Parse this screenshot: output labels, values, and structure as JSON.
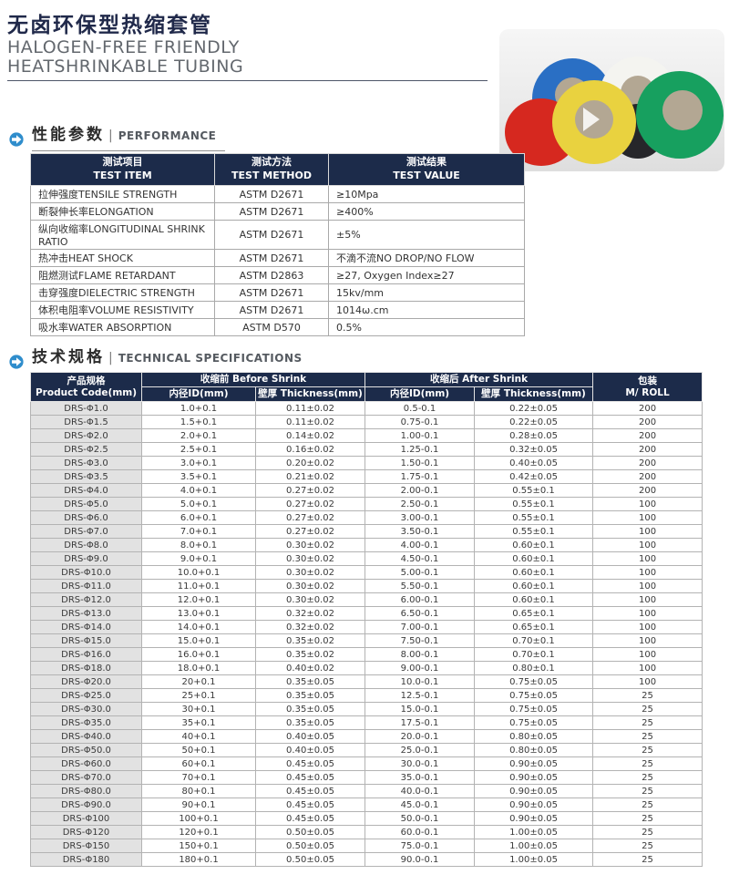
{
  "page": {
    "title_zh": "无卤环保型热缩套管",
    "subtitle_line1": "HALOGEN-FREE FRIENDLY",
    "subtitle_line2": "HEATSHRINKABLE TUBING"
  },
  "colors": {
    "header_navy": "#1c2b4a",
    "title_navy": "#20294a",
    "section_icon_blue": "#2f8dcc"
  },
  "photo": {
    "description": "rolls of colored heat-shrinkable tubing",
    "core_color": "#b3a793",
    "roll_colors": {
      "blue": "#2a6fc4",
      "white": "#f4f4f0",
      "black": "#26262a",
      "red": "#d6281f",
      "yellow": "#e9d23f",
      "green": "#17a05f"
    }
  },
  "performance": {
    "section_title_zh": "性能参数",
    "section_title_en": "PERFORMANCE",
    "table": {
      "headers_zh": [
        "测试项目",
        "测试方法",
        "测试结果"
      ],
      "headers_en": [
        "TEST ITEM",
        "TEST METHOD",
        "TEST VALUE"
      ],
      "rows": [
        [
          "拉伸强度TENSILE STRENGTH",
          "ASTM D2671",
          "≥10Mpa"
        ],
        [
          "断裂伸长率ELONGATION",
          "ASTM D2671",
          "≥400%"
        ],
        [
          "纵向收缩率LONGITUDINAL SHRINK RATIO",
          "ASTM D2671",
          "±5%"
        ],
        [
          "热冲击HEAT SHOCK",
          "ASTM D2671",
          "不滴不流NO DROP/NO FLOW"
        ],
        [
          "阻燃测试FLAME RETARDANT",
          "ASTM D2863",
          "≥27, Oxygen Index≥27"
        ],
        [
          "击穿强度DIELECTRIC STRENGTH",
          "ASTM D2671",
          "15kv/mm"
        ],
        [
          "体积电阻率VOLUME RESISTIVITY",
          "ASTM D2671",
          "1014ω.cm"
        ],
        [
          "吸水率WATER ABSORPTION",
          "ASTM D570",
          "0.5%"
        ]
      ]
    }
  },
  "specs": {
    "section_title_zh": "技术规格",
    "section_title_en": "TECHNICAL SPECIFICATIONS",
    "table": {
      "col_product_zh": "产品规格",
      "col_product_en": "Product Code(mm)",
      "group_before": "收缩前 Before Shrink",
      "group_after": "收缩后 After Shrink",
      "col_id_before": "内径ID(mm)",
      "col_thickness_before": "壁厚 Thickness(mm)",
      "col_id_after": "内径ID(mm)",
      "col_thickness_after": "壁厚 Thickness(mm)",
      "col_roll_zh": "包装",
      "col_roll_en": "M/ ROLL",
      "rows": [
        [
          "DRS-Φ1.0",
          "1.0+0.1",
          "0.11±0.02",
          "0.5-0.1",
          "0.22±0.05",
          "200"
        ],
        [
          "DRS-Φ1.5",
          "1.5+0.1",
          "0.11±0.02",
          "0.75-0.1",
          "0.22±0.05",
          "200"
        ],
        [
          "DRS-Φ2.0",
          "2.0+0.1",
          "0.14±0.02",
          "1.00-0.1",
          "0.28±0.05",
          "200"
        ],
        [
          "DRS-Φ2.5",
          "2.5+0.1",
          "0.16±0.02",
          "1.25-0.1",
          "0.32±0.05",
          "200"
        ],
        [
          "DRS-Φ3.0",
          "3.0+0.1",
          "0.20±0.02",
          "1.50-0.1",
          "0.40±0.05",
          "200"
        ],
        [
          "DRS-Φ3.5",
          "3.5+0.1",
          "0.21±0.02",
          "1.75-0.1",
          "0.42±0.05",
          "200"
        ],
        [
          "DRS-Φ4.0",
          "4.0+0.1",
          "0.27±0.02",
          "2.00-0.1",
          "0.55±0.1",
          "200"
        ],
        [
          "DRS-Φ5.0",
          "5.0+0.1",
          "0.27±0.02",
          "2.50-0.1",
          "0.55±0.1",
          "100"
        ],
        [
          "DRS-Φ6.0",
          "6.0+0.1",
          "0.27±0.02",
          "3.00-0.1",
          "0.55±0.1",
          "100"
        ],
        [
          "DRS-Φ7.0",
          "7.0+0.1",
          "0.27±0.02",
          "3.50-0.1",
          "0.55±0.1",
          "100"
        ],
        [
          "DRS-Φ8.0",
          "8.0+0.1",
          "0.30±0.02",
          "4.00-0.1",
          "0.60±0.1",
          "100"
        ],
        [
          "DRS-Φ9.0",
          "9.0+0.1",
          "0.30±0.02",
          "4.50-0.1",
          "0.60±0.1",
          "100"
        ],
        [
          "DRS-Φ10.0",
          "10.0+0.1",
          "0.30±0.02",
          "5.00-0.1",
          "0.60±0.1",
          "100"
        ],
        [
          "DRS-Φ11.0",
          "11.0+0.1",
          "0.30±0.02",
          "5.50-0.1",
          "0.60±0.1",
          "100"
        ],
        [
          "DRS-Φ12.0",
          "12.0+0.1",
          "0.30±0.02",
          "6.00-0.1",
          "0.60±0.1",
          "100"
        ],
        [
          "DRS-Φ13.0",
          "13.0+0.1",
          "0.32±0.02",
          "6.50-0.1",
          "0.65±0.1",
          "100"
        ],
        [
          "DRS-Φ14.0",
          "14.0+0.1",
          "0.32±0.02",
          "7.00-0.1",
          "0.65±0.1",
          "100"
        ],
        [
          "DRS-Φ15.0",
          "15.0+0.1",
          "0.35±0.02",
          "7.50-0.1",
          "0.70±0.1",
          "100"
        ],
        [
          "DRS-Φ16.0",
          "16.0+0.1",
          "0.35±0.02",
          "8.00-0.1",
          "0.70±0.1",
          "100"
        ],
        [
          "DRS-Φ18.0",
          "18.0+0.1",
          "0.40±0.02",
          "9.00-0.1",
          "0.80±0.1",
          "100"
        ],
        [
          "DRS-Φ20.0",
          "20+0.1",
          "0.35±0.05",
          "10.0-0.1",
          "0.75±0.05",
          "100"
        ],
        [
          "DRS-Φ25.0",
          "25+0.1",
          "0.35±0.05",
          "12.5-0.1",
          "0.75±0.05",
          "25"
        ],
        [
          "DRS-Φ30.0",
          "30+0.1",
          "0.35±0.05",
          "15.0-0.1",
          "0.75±0.05",
          "25"
        ],
        [
          "DRS-Φ35.0",
          "35+0.1",
          "0.35±0.05",
          "17.5-0.1",
          "0.75±0.05",
          "25"
        ],
        [
          "DRS-Φ40.0",
          "40+0.1",
          "0.40±0.05",
          "20.0-0.1",
          "0.80±0.05",
          "25"
        ],
        [
          "DRS-Φ50.0",
          "50+0.1",
          "0.40±0.05",
          "25.0-0.1",
          "0.80±0.05",
          "25"
        ],
        [
          "DRS-Φ60.0",
          "60+0.1",
          "0.45±0.05",
          "30.0-0.1",
          "0.90±0.05",
          "25"
        ],
        [
          "DRS-Φ70.0",
          "70+0.1",
          "0.45±0.05",
          "35.0-0.1",
          "0.90±0.05",
          "25"
        ],
        [
          "DRS-Φ80.0",
          "80+0.1",
          "0.45±0.05",
          "40.0-0.1",
          "0.90±0.05",
          "25"
        ],
        [
          "DRS-Φ90.0",
          "90+0.1",
          "0.45±0.05",
          "45.0-0.1",
          "0.90±0.05",
          "25"
        ],
        [
          "DRS-Φ100",
          "100+0.1",
          "0.45±0.05",
          "50.0-0.1",
          "0.90±0.05",
          "25"
        ],
        [
          "DRS-Φ120",
          "120+0.1",
          "0.50±0.05",
          "60.0-0.1",
          "1.00±0.05",
          "25"
        ],
        [
          "DRS-Φ150",
          "150+0.1",
          "0.50±0.05",
          "75.0-0.1",
          "1.00±0.05",
          "25"
        ],
        [
          "DRS-Φ180",
          "180+0.1",
          "0.50±0.05",
          "90.0-0.1",
          "1.00±0.05",
          "25"
        ]
      ]
    }
  }
}
